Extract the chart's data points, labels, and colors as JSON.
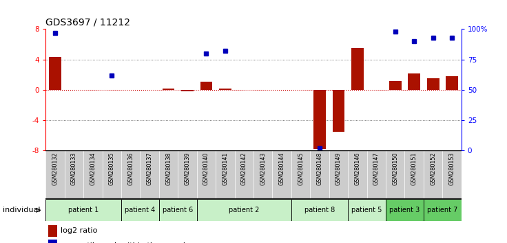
{
  "title": "GDS3697 / 11212",
  "samples": [
    "GSM280132",
    "GSM280133",
    "GSM280134",
    "GSM280135",
    "GSM280136",
    "GSM280137",
    "GSM280138",
    "GSM280139",
    "GSM280140",
    "GSM280141",
    "GSM280142",
    "GSM280143",
    "GSM280144",
    "GSM280145",
    "GSM280148",
    "GSM280149",
    "GSM280146",
    "GSM280147",
    "GSM280150",
    "GSM280151",
    "GSM280152",
    "GSM280153"
  ],
  "log2_ratio": [
    4.3,
    0.0,
    0.0,
    0.0,
    0.0,
    0.0,
    0.15,
    -0.15,
    1.1,
    0.2,
    0.0,
    0.0,
    0.0,
    0.0,
    -7.8,
    -5.5,
    5.5,
    0.0,
    1.2,
    2.2,
    1.5,
    1.8
  ],
  "percentile_raw": [
    97,
    null,
    null,
    62,
    null,
    null,
    null,
    null,
    80,
    82,
    null,
    null,
    null,
    null,
    2,
    null,
    null,
    null,
    98,
    90,
    93,
    93
  ],
  "patients": [
    {
      "label": "patient 1",
      "start": 0,
      "end": 3,
      "color": "#c8f0c8"
    },
    {
      "label": "patient 4",
      "start": 4,
      "end": 5,
      "color": "#c8f0c8"
    },
    {
      "label": "patient 6",
      "start": 6,
      "end": 7,
      "color": "#c8f0c8"
    },
    {
      "label": "patient 2",
      "start": 8,
      "end": 12,
      "color": "#c8f0c8"
    },
    {
      "label": "patient 8",
      "start": 13,
      "end": 15,
      "color": "#c8f0c8"
    },
    {
      "label": "patient 5",
      "start": 16,
      "end": 17,
      "color": "#c8f0c8"
    },
    {
      "label": "patient 3",
      "start": 18,
      "end": 19,
      "color": "#66cc66"
    },
    {
      "label": "patient 7",
      "start": 20,
      "end": 21,
      "color": "#66cc66"
    }
  ],
  "ylim_left": [
    -8,
    8
  ],
  "ylim_right": [
    0,
    100
  ],
  "yticks_left": [
    -8,
    -4,
    0,
    4,
    8
  ],
  "yticks_right": [
    0,
    25,
    50,
    75,
    100
  ],
  "bar_color": "#aa1100",
  "dot_color": "#0000bb",
  "zero_line_color": "#cc0000",
  "grid_color": "#555555",
  "label_bg_color": "#cccccc",
  "fig_width": 7.36,
  "fig_height": 3.54
}
